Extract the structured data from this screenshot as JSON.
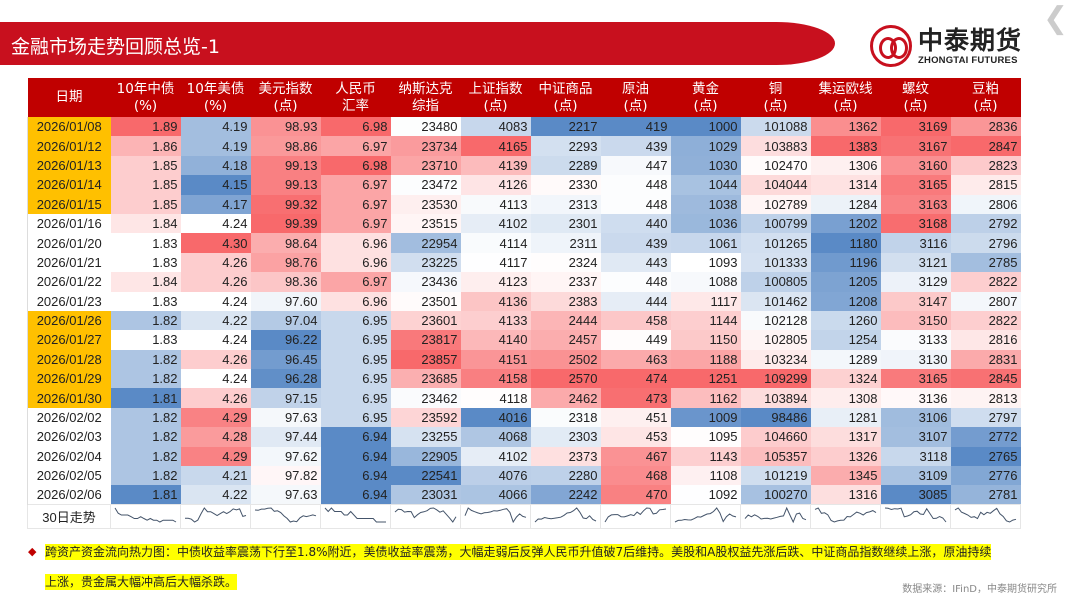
{
  "header": {
    "title": "金融市场走势回顾总览-1",
    "logo_cn": "中泰期货",
    "logo_en": "ZHONGTAI FUTURES",
    "nav_icon": "chevron-left-icon"
  },
  "colors": {
    "title_bar": "#c8101e",
    "header_bg": "#c00000",
    "highlight_date": "#ffc000",
    "heat_low": "#5a8ac6",
    "heat_mid": "#ffffff",
    "heat_high": "#f8696b",
    "sparkline": "#44546a",
    "note_highlight": "#ffff00"
  },
  "table": {
    "columns": [
      "日期",
      "10年中债\n(%)",
      "10年美债\n(%)",
      "美元指数\n(点)",
      "人民币\n汇率",
      "纳斯达克\n综指",
      "上证指数\n(点)",
      "中证商品\n(点)",
      "原油\n(点)",
      "黄金\n(点)",
      "铜\n(点)",
      "集运欧线\n(点)",
      "螺纹\n(点)",
      "豆粕\n(点)"
    ],
    "decimals": [
      2,
      2,
      2,
      2,
      0,
      0,
      0,
      0,
      0,
      0,
      0,
      0,
      0
    ],
    "rows": [
      {
        "date": "2026/01/08",
        "highlight": true,
        "values": [
          1.89,
          4.19,
          98.93,
          6.98,
          23480,
          4083,
          2217,
          419,
          1000,
          101088,
          1362,
          3169,
          2836
        ]
      },
      {
        "date": "2026/01/12",
        "highlight": true,
        "values": [
          1.86,
          4.19,
          98.86,
          6.97,
          23734,
          4165,
          2293,
          439,
          1029,
          103883,
          1383,
          3167,
          2847
        ]
      },
      {
        "date": "2026/01/13",
        "highlight": true,
        "values": [
          1.85,
          4.18,
          99.13,
          6.98,
          23710,
          4139,
          2289,
          447,
          1030,
          102470,
          1306,
          3160,
          2823
        ]
      },
      {
        "date": "2026/01/14",
        "highlight": true,
        "values": [
          1.85,
          4.15,
          99.13,
          6.97,
          23472,
          4126,
          2330,
          448,
          1044,
          104044,
          1314,
          3165,
          2815
        ]
      },
      {
        "date": "2026/01/15",
        "highlight": true,
        "values": [
          1.85,
          4.17,
          99.32,
          6.97,
          23530,
          4113,
          2313,
          448,
          1038,
          102789,
          1284,
          3163,
          2806
        ]
      },
      {
        "date": "2026/01/16",
        "highlight": false,
        "values": [
          1.84,
          4.24,
          99.39,
          6.97,
          23515,
          4102,
          2301,
          440,
          1036,
          100799,
          1202,
          3168,
          2792
        ]
      },
      {
        "date": "2026/01/20",
        "highlight": false,
        "values": [
          1.83,
          4.3,
          98.64,
          6.96,
          22954,
          4114,
          2311,
          439,
          1061,
          101265,
          1180,
          3116,
          2796
        ]
      },
      {
        "date": "2026/01/21",
        "highlight": false,
        "values": [
          1.83,
          4.26,
          98.76,
          6.96,
          23225,
          4117,
          2324,
          443,
          1093,
          101333,
          1196,
          3121,
          2785
        ]
      },
      {
        "date": "2026/01/22",
        "highlight": false,
        "values": [
          1.84,
          4.26,
          98.36,
          6.97,
          23436,
          4123,
          2337,
          448,
          1088,
          100805,
          1205,
          3129,
          2822
        ]
      },
      {
        "date": "2026/01/23",
        "highlight": false,
        "values": [
          1.83,
          4.24,
          97.6,
          6.96,
          23501,
          4136,
          2383,
          444,
          1117,
          101462,
          1208,
          3147,
          2807
        ]
      },
      {
        "date": "2026/01/26",
        "highlight": true,
        "values": [
          1.82,
          4.22,
          97.04,
          6.95,
          23601,
          4133,
          2444,
          458,
          1144,
          102128,
          1260,
          3150,
          2822
        ]
      },
      {
        "date": "2026/01/27",
        "highlight": true,
        "values": [
          1.83,
          4.24,
          96.22,
          6.95,
          23817,
          4140,
          2457,
          449,
          1150,
          102805,
          1254,
          3133,
          2816
        ]
      },
      {
        "date": "2026/01/28",
        "highlight": true,
        "values": [
          1.82,
          4.26,
          96.45,
          6.95,
          23857,
          4151,
          2502,
          463,
          1188,
          103234,
          1289,
          3130,
          2831
        ]
      },
      {
        "date": "2026/01/29",
        "highlight": true,
        "values": [
          1.82,
          4.24,
          96.28,
          6.95,
          23685,
          4158,
          2570,
          474,
          1251,
          109299,
          1324,
          3165,
          2845
        ]
      },
      {
        "date": "2026/01/30",
        "highlight": true,
        "values": [
          1.81,
          4.26,
          97.15,
          6.95,
          23462,
          4118,
          2462,
          473,
          1162,
          103894,
          1308,
          3136,
          2813
        ]
      },
      {
        "date": "2026/02/02",
        "highlight": false,
        "values": [
          1.82,
          4.29,
          97.63,
          6.95,
          23592,
          4016,
          2318,
          451,
          1009,
          98486,
          1281,
          3106,
          2797
        ]
      },
      {
        "date": "2026/02/03",
        "highlight": false,
        "values": [
          1.82,
          4.28,
          97.44,
          6.94,
          23255,
          4068,
          2303,
          453,
          1095,
          104660,
          1317,
          3107,
          2772
        ]
      },
      {
        "date": "2026/02/04",
        "highlight": false,
        "values": [
          1.82,
          4.29,
          97.62,
          6.94,
          22905,
          4102,
          2373,
          467,
          1143,
          105357,
          1326,
          3118,
          2765
        ]
      },
      {
        "date": "2026/02/05",
        "highlight": false,
        "values": [
          1.82,
          4.21,
          97.82,
          6.94,
          22541,
          4076,
          2280,
          468,
          1108,
          101219,
          1345,
          3109,
          2776
        ]
      },
      {
        "date": "2026/02/06",
        "highlight": false,
        "values": [
          1.81,
          4.22,
          97.63,
          6.94,
          23031,
          4066,
          2242,
          470,
          1092,
          100270,
          1316,
          3085,
          2781
        ]
      }
    ],
    "sparkline_label": "30日走势"
  },
  "note": {
    "line1": "跨资产资金流向热力图：中债收益率震荡下行至1.8%附近，美债收益率震荡，大幅走弱后反弹人民币升值破7后维持。美股和A股权益先涨后跌、中证商品指数继续上涨，原油持续",
    "line2": "上涨，贵金属大幅冲高后大幅杀跌。"
  },
  "source": "数据来源：IFinD，中泰期货研究所"
}
